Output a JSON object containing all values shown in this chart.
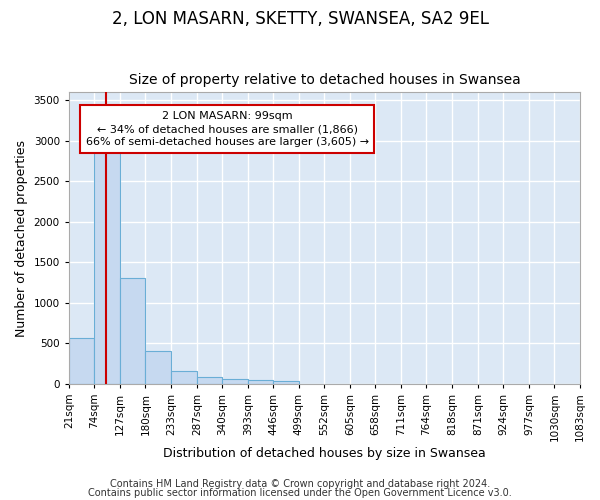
{
  "title": "2, LON MASARN, SKETTY, SWANSEA, SA2 9EL",
  "subtitle": "Size of property relative to detached houses in Swansea",
  "xlabel": "Distribution of detached houses by size in Swansea",
  "ylabel": "Number of detached properties",
  "bin_labels": [
    "21sqm",
    "74sqm",
    "127sqm",
    "180sqm",
    "233sqm",
    "287sqm",
    "340sqm",
    "393sqm",
    "446sqm",
    "499sqm",
    "552sqm",
    "605sqm",
    "658sqm",
    "711sqm",
    "764sqm",
    "818sqm",
    "871sqm",
    "924sqm",
    "977sqm",
    "1030sqm",
    "1083sqm"
  ],
  "bin_edges": [
    21,
    74,
    127,
    180,
    233,
    287,
    340,
    393,
    446,
    499,
    552,
    605,
    658,
    711,
    764,
    818,
    871,
    924,
    977,
    1030,
    1083
  ],
  "bar_values": [
    570,
    2930,
    1310,
    410,
    160,
    80,
    55,
    50,
    40,
    0,
    0,
    0,
    0,
    0,
    0,
    0,
    0,
    0,
    0,
    0
  ],
  "bar_color": "#c6d9f0",
  "bar_edge_color": "#6aaed6",
  "property_size": 99,
  "property_line_color": "#cc0000",
  "annotation_text": "2 LON MASARN: 99sqm\n← 34% of detached houses are smaller (1,866)\n66% of semi-detached houses are larger (3,605) →",
  "annotation_box_color": "#ffffff",
  "annotation_box_edge_color": "#cc0000",
  "ylim": [
    0,
    3600
  ],
  "yticks": [
    0,
    500,
    1000,
    1500,
    2000,
    2500,
    3000,
    3500
  ],
  "fig_background_color": "#ffffff",
  "plot_background_color": "#dce8f5",
  "grid_color": "#ffffff",
  "footer1": "Contains HM Land Registry data © Crown copyright and database right 2024.",
  "footer2": "Contains public sector information licensed under the Open Government Licence v3.0.",
  "title_fontsize": 12,
  "subtitle_fontsize": 10,
  "label_fontsize": 9,
  "tick_fontsize": 7.5,
  "footer_fontsize": 7.0
}
